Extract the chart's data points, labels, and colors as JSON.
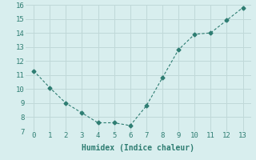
{
  "x": [
    0,
    1,
    2,
    3,
    4,
    5,
    6,
    7,
    8,
    9,
    10,
    11,
    12,
    13
  ],
  "y": [
    11.3,
    10.1,
    9.0,
    8.3,
    7.6,
    7.6,
    7.4,
    8.8,
    10.8,
    12.8,
    13.9,
    14.0,
    14.9,
    15.8
  ],
  "xlabel": "Humidex (Indice chaleur)",
  "xlim": [
    -0.5,
    13.5
  ],
  "ylim": [
    7,
    16
  ],
  "yticks": [
    7,
    8,
    9,
    10,
    11,
    12,
    13,
    14,
    15,
    16
  ],
  "xticks": [
    0,
    1,
    2,
    3,
    4,
    5,
    6,
    7,
    8,
    9,
    10,
    11,
    12,
    13
  ],
  "line_color": "#2e7d72",
  "marker": "D",
  "marker_size": 2.5,
  "bg_color": "#d8eeee",
  "grid_color": "#c0d8d8",
  "font_family": "monospace",
  "tick_fontsize": 6.5,
  "xlabel_fontsize": 7
}
